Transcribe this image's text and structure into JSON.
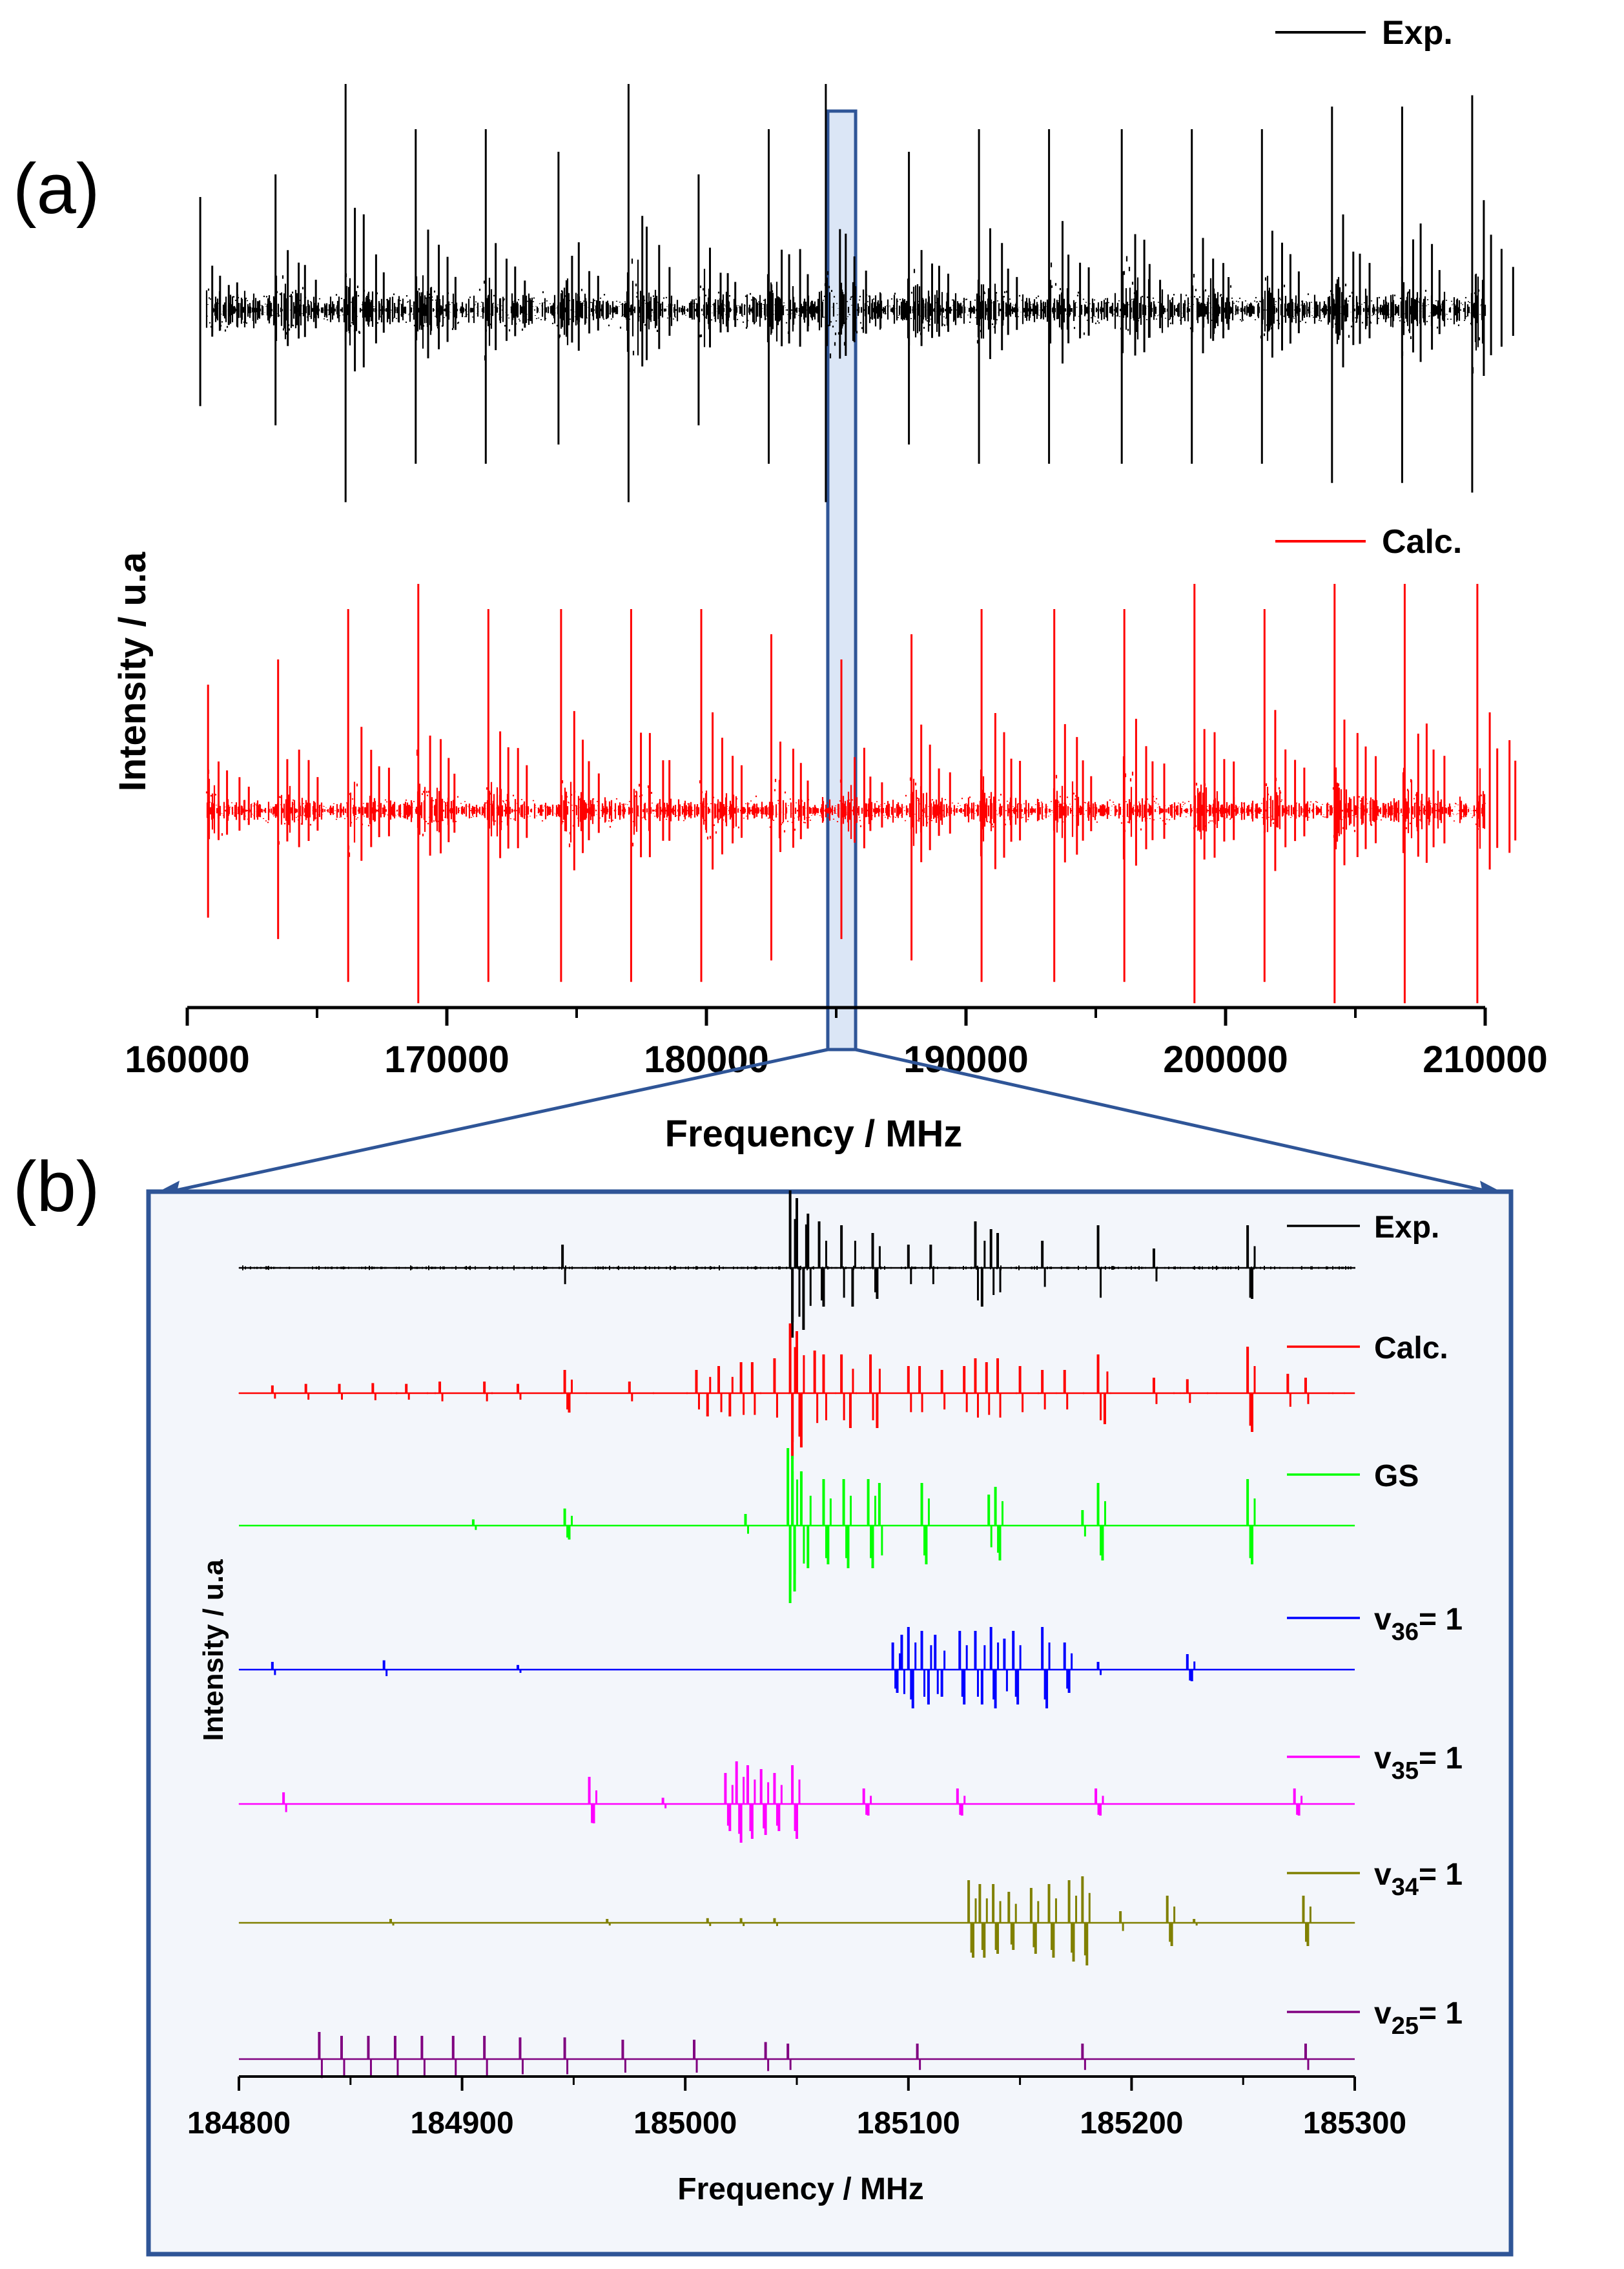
{
  "chart_data": [
    {
      "panel": "a",
      "type": "line",
      "panel_label": "(a)",
      "xlabel": "Frequency / MHz",
      "ylabel": "Intensity / u.a",
      "xlim": [
        160000,
        210000
      ],
      "xticks": [
        160000,
        170000,
        180000,
        190000,
        200000,
        210000
      ],
      "tick_labels": [
        "160000",
        "170000",
        "180000",
        "190000",
        "200000",
        "210000"
      ],
      "highlight_range": [
        184800,
        185300
      ],
      "series": [
        {
          "name": "Exp.",
          "color": "#000000",
          "noise": 0.13,
          "peak_positions": [
            160500,
            163400,
            166100,
            168800,
            171500,
            174300,
            177000,
            179700,
            182400,
            184600,
            187800,
            190500,
            193200,
            196000,
            198700,
            201400,
            204100,
            206800,
            209500
          ],
          "peak_amplitudes": [
            0.5,
            0.6,
            1.0,
            0.8,
            0.8,
            0.7,
            1.0,
            0.6,
            0.8,
            1.0,
            0.7,
            0.8,
            0.8,
            0.8,
            0.8,
            0.8,
            0.9,
            0.9,
            0.95
          ]
        },
        {
          "name": "Calc.",
          "color": "#ff0000",
          "noise": 0.08,
          "peak_positions": [
            160800,
            163500,
            166200,
            168900,
            171600,
            174400,
            177100,
            179800,
            182500,
            185200,
            187900,
            190600,
            193400,
            196100,
            198800,
            201500,
            204200,
            206900,
            209700
          ],
          "peak_amplitudes": [
            0.5,
            0.6,
            0.8,
            0.9,
            0.8,
            0.8,
            0.8,
            0.8,
            0.7,
            0.6,
            0.7,
            0.8,
            0.8,
            0.8,
            0.9,
            0.8,
            0.9,
            0.9,
            0.9
          ]
        }
      ]
    },
    {
      "panel": "b",
      "type": "line",
      "panel_label": "(b)",
      "xlabel": "Frequency / MHz",
      "ylabel": "Intensity / u.a",
      "xlim": [
        184800,
        185300
      ],
      "xticks": [
        184800,
        184900,
        185000,
        185100,
        185200,
        185300
      ],
      "tick_labels": [
        "184800",
        "184900",
        "185000",
        "185100",
        "185200",
        "185300"
      ],
      "series": [
        {
          "name": "Exp.",
          "label_base": "Exp.",
          "label_sub": "",
          "label_tail": "",
          "color": "#000000",
          "noise": 0.04,
          "lines": [
            [
              184945,
              0.3
            ],
            [
              185047,
              1.0
            ],
            [
              185048,
              -0.9
            ],
            [
              185050,
              0.9
            ],
            [
              185053,
              -0.8
            ],
            [
              185055,
              0.7
            ],
            [
              185060,
              0.6
            ],
            [
              185062,
              -0.5
            ],
            [
              185070,
              0.55
            ],
            [
              185075,
              -0.5
            ],
            [
              185084,
              0.45
            ],
            [
              185086,
              -0.4
            ],
            [
              185100,
              0.3
            ],
            [
              185110,
              0.3
            ],
            [
              185130,
              0.6
            ],
            [
              185133,
              -0.5
            ],
            [
              185137,
              0.5
            ],
            [
              185140,
              0.45
            ],
            [
              185160,
              0.35
            ],
            [
              185185,
              0.55
            ],
            [
              185210,
              0.25
            ],
            [
              185252,
              0.55
            ],
            [
              185254,
              -0.4
            ]
          ]
        },
        {
          "name": "Calc.",
          "label_base": "Calc.",
          "label_sub": "",
          "label_tail": "",
          "color": "#ff0000",
          "noise": 0.015,
          "lines": [
            [
              184815,
              0.1
            ],
            [
              184830,
              0.12
            ],
            [
              184845,
              0.12
            ],
            [
              184860,
              0.13
            ],
            [
              184875,
              0.12
            ],
            [
              184890,
              0.15
            ],
            [
              184910,
              0.15
            ],
            [
              184925,
              0.12
            ],
            [
              184946,
              0.3
            ],
            [
              184948,
              -0.25
            ],
            [
              184975,
              0.15
            ],
            [
              185005,
              0.3
            ],
            [
              185010,
              -0.3
            ],
            [
              185015,
              0.35
            ],
            [
              185020,
              -0.3
            ],
            [
              185025,
              0.4
            ],
            [
              185030,
              0.4
            ],
            [
              185040,
              0.45
            ],
            [
              185047,
              0.9
            ],
            [
              185048,
              -0.85
            ],
            [
              185050,
              0.8
            ],
            [
              185052,
              -0.7
            ],
            [
              185058,
              0.55
            ],
            [
              185062,
              0.5
            ],
            [
              185070,
              0.5
            ],
            [
              185074,
              -0.45
            ],
            [
              185083,
              0.5
            ],
            [
              185086,
              -0.45
            ],
            [
              185100,
              0.35
            ],
            [
              185105,
              0.35
            ],
            [
              185115,
              0.3
            ],
            [
              185125,
              0.35
            ],
            [
              185130,
              0.45
            ],
            [
              185135,
              0.4
            ],
            [
              185140,
              0.45
            ],
            [
              185150,
              0.35
            ],
            [
              185160,
              0.3
            ],
            [
              185170,
              0.3
            ],
            [
              185185,
              0.5
            ],
            [
              185188,
              -0.4
            ],
            [
              185210,
              0.2
            ],
            [
              185225,
              0.18
            ],
            [
              185252,
              0.6
            ],
            [
              185254,
              -0.5
            ],
            [
              185270,
              0.25
            ],
            [
              185278,
              0.2
            ]
          ]
        },
        {
          "name": "GS",
          "label_base": "GS",
          "label_sub": "",
          "label_tail": "",
          "color": "#00ff00",
          "noise": 0.005,
          "lines": [
            [
              184905,
              0.08
            ],
            [
              184946,
              0.22
            ],
            [
              184948,
              -0.18
            ],
            [
              185027,
              0.15
            ],
            [
              185046,
              1.0
            ],
            [
              185047,
              -1.0
            ],
            [
              185048,
              0.9
            ],
            [
              185049,
              -0.85
            ],
            [
              185052,
              0.7
            ],
            [
              185055,
              -0.55
            ],
            [
              185062,
              0.6
            ],
            [
              185064,
              -0.5
            ],
            [
              185071,
              0.6
            ],
            [
              185073,
              -0.55
            ],
            [
              185082,
              0.6
            ],
            [
              185084,
              -0.55
            ],
            [
              185087,
              0.55
            ],
            [
              185106,
              0.55
            ],
            [
              185108,
              -0.5
            ],
            [
              185136,
              0.4
            ],
            [
              185139,
              0.5
            ],
            [
              185141,
              -0.45
            ],
            [
              185178,
              0.2
            ],
            [
              185185,
              0.55
            ],
            [
              185187,
              -0.45
            ],
            [
              185252,
              0.6
            ],
            [
              185254,
              -0.5
            ]
          ]
        },
        {
          "name": "v36= 1",
          "label_base": "v",
          "label_sub": "36",
          "label_tail": "= 1",
          "color": "#0000ff",
          "noise": 0.005,
          "lines": [
            [
              184815,
              0.1
            ],
            [
              184865,
              0.12
            ],
            [
              184925,
              0.06
            ],
            [
              185093,
              0.35
            ],
            [
              185095,
              -0.3
            ],
            [
              185097,
              0.45
            ],
            [
              185100,
              0.55
            ],
            [
              185102,
              -0.5
            ],
            [
              185106,
              0.5
            ],
            [
              185109,
              -0.45
            ],
            [
              185112,
              0.45
            ],
            [
              185115,
              -0.35
            ],
            [
              185123,
              0.5
            ],
            [
              185125,
              -0.45
            ],
            [
              185130,
              0.5
            ],
            [
              185133,
              -0.45
            ],
            [
              185137,
              0.55
            ],
            [
              185139,
              -0.5
            ],
            [
              185143,
              0.4
            ],
            [
              185147,
              0.5
            ],
            [
              185149,
              -0.45
            ],
            [
              185160,
              0.55
            ],
            [
              185162,
              -0.5
            ],
            [
              185170,
              0.35
            ],
            [
              185172,
              -0.3
            ],
            [
              185185,
              0.1
            ],
            [
              185225,
              0.2
            ],
            [
              185227,
              -0.15
            ]
          ]
        },
        {
          "name": "v35= 1",
          "label_base": "v",
          "label_sub": "35",
          "label_tail": "= 1",
          "color": "#ff00ff",
          "noise": 0.005,
          "lines": [
            [
              184820,
              0.15
            ],
            [
              184957,
              0.35
            ],
            [
              184959,
              -0.25
            ],
            [
              184990,
              0.08
            ],
            [
              185018,
              0.4
            ],
            [
              185020,
              -0.35
            ],
            [
              185023,
              0.55
            ],
            [
              185025,
              -0.5
            ],
            [
              185028,
              0.5
            ],
            [
              185030,
              -0.45
            ],
            [
              185034,
              0.45
            ],
            [
              185036,
              -0.4
            ],
            [
              185040,
              0.4
            ],
            [
              185042,
              -0.35
            ],
            [
              185048,
              0.5
            ],
            [
              185050,
              -0.45
            ],
            [
              185080,
              0.2
            ],
            [
              185082,
              -0.15
            ],
            [
              185122,
              0.2
            ],
            [
              185124,
              -0.15
            ],
            [
              185184,
              0.2
            ],
            [
              185186,
              -0.15
            ],
            [
              185273,
              0.2
            ],
            [
              185275,
              -0.15
            ]
          ]
        },
        {
          "name": "v34= 1",
          "label_base": "v",
          "label_sub": "34",
          "label_tail": "= 1",
          "color": "#808000",
          "noise": 0.004,
          "lines": [
            [
              184868,
              0.05
            ],
            [
              184965,
              0.05
            ],
            [
              185010,
              0.06
            ],
            [
              185025,
              0.06
            ],
            [
              185040,
              0.06
            ],
            [
              185127,
              0.55
            ],
            [
              185129,
              -0.45
            ],
            [
              185132,
              0.5
            ],
            [
              185134,
              -0.45
            ],
            [
              185138,
              0.5
            ],
            [
              185140,
              -0.4
            ],
            [
              185145,
              0.4
            ],
            [
              185147,
              -0.35
            ],
            [
              185155,
              0.45
            ],
            [
              185157,
              -0.4
            ],
            [
              185163,
              0.5
            ],
            [
              185165,
              -0.45
            ],
            [
              185172,
              0.55
            ],
            [
              185174,
              -0.5
            ],
            [
              185178,
              0.6
            ],
            [
              185180,
              -0.55
            ],
            [
              185195,
              0.15
            ],
            [
              185216,
              0.35
            ],
            [
              185218,
              -0.3
            ],
            [
              185228,
              0.05
            ],
            [
              185277,
              0.35
            ],
            [
              185279,
              -0.3
            ]
          ]
        },
        {
          "name": "v25= 1",
          "label_base": "v",
          "label_sub": "25",
          "label_tail": "= 1",
          "color": "#800080",
          "noise": 0.003,
          "lines": [
            [
              184836,
              0.35
            ],
            [
              184846,
              0.3
            ],
            [
              184858,
              0.3
            ],
            [
              184870,
              0.3
            ],
            [
              184882,
              0.3
            ],
            [
              184896,
              0.3
            ],
            [
              184910,
              0.3
            ],
            [
              184926,
              0.28
            ],
            [
              184946,
              0.28
            ],
            [
              184972,
              0.25
            ],
            [
              185004,
              0.25
            ],
            [
              185036,
              0.22
            ],
            [
              185046,
              0.2
            ],
            [
              185104,
              0.2
            ],
            [
              185178,
              0.2
            ],
            [
              185278,
              0.2
            ]
          ]
        }
      ]
    }
  ]
}
